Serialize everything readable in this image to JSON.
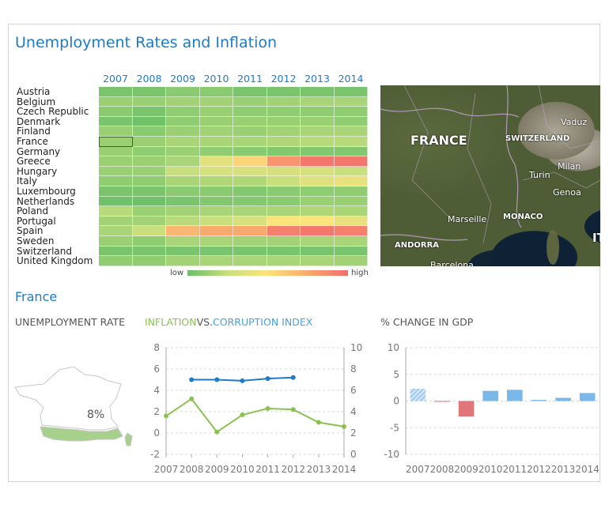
{
  "dashboard": {
    "title": "Unemployment Rates and Inflation",
    "selected_country": "France",
    "legend_low": "low",
    "legend_high": "high"
  },
  "heatmap": {
    "years": [
      "2007",
      "2008",
      "2009",
      "2010",
      "2011",
      "2012",
      "2013",
      "2014"
    ],
    "countries": [
      "Austria",
      "Belgium",
      "Czech Republic",
      "Denmark",
      "Finland",
      "France",
      "Germany",
      "Greece",
      "Hungary",
      "Italy",
      "Luxembourg",
      "Netherlands",
      "Poland",
      "Portugal",
      "Spain",
      "Sweden",
      "Switzerland",
      "United Kingdom"
    ],
    "levels": [
      [
        0.05,
        0.05,
        0.1,
        0.1,
        0.05,
        0.05,
        0.05,
        0.05
      ],
      [
        0.15,
        0.15,
        0.18,
        0.18,
        0.15,
        0.18,
        0.2,
        0.2
      ],
      [
        0.1,
        0.05,
        0.12,
        0.15,
        0.12,
        0.12,
        0.12,
        0.12
      ],
      [
        0.05,
        0.02,
        0.12,
        0.15,
        0.15,
        0.15,
        0.15,
        0.12
      ],
      [
        0.15,
        0.1,
        0.15,
        0.18,
        0.15,
        0.18,
        0.2,
        0.2
      ],
      [
        0.15,
        0.15,
        0.2,
        0.2,
        0.2,
        0.22,
        0.25,
        0.25
      ],
      [
        0.15,
        0.12,
        0.15,
        0.12,
        0.1,
        0.08,
        0.08,
        0.08
      ],
      [
        0.15,
        0.15,
        0.2,
        0.4,
        0.55,
        0.8,
        0.95,
        0.95
      ],
      [
        0.15,
        0.15,
        0.3,
        0.35,
        0.35,
        0.35,
        0.35,
        0.3
      ],
      [
        0.12,
        0.12,
        0.2,
        0.22,
        0.22,
        0.3,
        0.38,
        0.42
      ],
      [
        0.05,
        0.05,
        0.1,
        0.1,
        0.08,
        0.1,
        0.12,
        0.12
      ],
      [
        0.02,
        0.02,
        0.05,
        0.08,
        0.08,
        0.1,
        0.15,
        0.15
      ],
      [
        0.25,
        0.15,
        0.18,
        0.2,
        0.2,
        0.2,
        0.22,
        0.2
      ],
      [
        0.18,
        0.18,
        0.25,
        0.3,
        0.35,
        0.5,
        0.5,
        0.42
      ],
      [
        0.2,
        0.3,
        0.65,
        0.7,
        0.7,
        0.9,
        0.95,
        0.9
      ],
      [
        0.15,
        0.12,
        0.2,
        0.2,
        0.18,
        0.18,
        0.2,
        0.2
      ],
      [
        0.05,
        0.05,
        0.05,
        0.05,
        0.05,
        0.05,
        0.05,
        0.05
      ],
      [
        0.12,
        0.12,
        0.18,
        0.2,
        0.2,
        0.2,
        0.2,
        0.18
      ]
    ],
    "selected_cell": {
      "country": "France",
      "year": "2007"
    }
  },
  "map": {
    "country_label": "FRANCE",
    "labels": [
      "SWITZERLAND",
      "MONACO",
      "ANDORRA",
      "IT"
    ],
    "cities": [
      "Vaduz",
      "Milan",
      "Turin",
      "Genoa",
      "Marseille",
      "Barcelona"
    ]
  },
  "detail": {
    "unemployment_label": "UNEMPLOYMENT RATE",
    "unemployment_value": "8%",
    "inflation_label": "INFLATION",
    "vs_label": "VS.",
    "corruption_label": "CORRUPTION INDEX",
    "gdp_label": "% CHANGE IN GDP",
    "colors": {
      "accent": "#1f7ac9",
      "inflation": "#8cc152",
      "corruption": "#1f7ac9",
      "gdp_positive": "#7ab8ea",
      "gdp_negative": "#e0767a",
      "france_fill": "#a8d08d"
    }
  },
  "chart_data": [
    {
      "type": "line",
      "title": "INFLATION VS. CORRUPTION INDEX",
      "x": [
        "2007",
        "2008",
        "2009",
        "2010",
        "2011",
        "2012",
        "2013",
        "2014"
      ],
      "ylim_left": [
        -2,
        8
      ],
      "yticks_left": [
        "-2",
        "0",
        "2",
        "4",
        "6",
        "8"
      ],
      "ylim_right": [
        0,
        10
      ],
      "yticks_right": [
        "0",
        "2",
        "4",
        "6",
        "8",
        "10"
      ],
      "series": [
        {
          "name": "INFLATION",
          "axis": "left",
          "color": "#8cc152",
          "values": [
            1.6,
            3.2,
            0.1,
            1.7,
            2.3,
            2.2,
            1.0,
            0.6
          ]
        },
        {
          "name": "CORRUPTION INDEX",
          "axis": "right",
          "color": "#1f7ac9",
          "values": [
            null,
            7.0,
            7.0,
            6.9,
            7.1,
            7.2,
            null,
            null
          ]
        }
      ],
      "grid": true
    },
    {
      "type": "bar",
      "title": "% CHANGE IN GDP",
      "categories": [
        "2007",
        "2008",
        "2009",
        "2010",
        "2011",
        "2012",
        "2013",
        "2014"
      ],
      "values": [
        2.3,
        -0.1,
        -2.9,
        1.9,
        2.1,
        0.2,
        0.6,
        1.5
      ],
      "ylim": [
        -10,
        10
      ],
      "yticks": [
        "10",
        "5",
        "0",
        "-5",
        "-10"
      ],
      "grid": true
    }
  ]
}
